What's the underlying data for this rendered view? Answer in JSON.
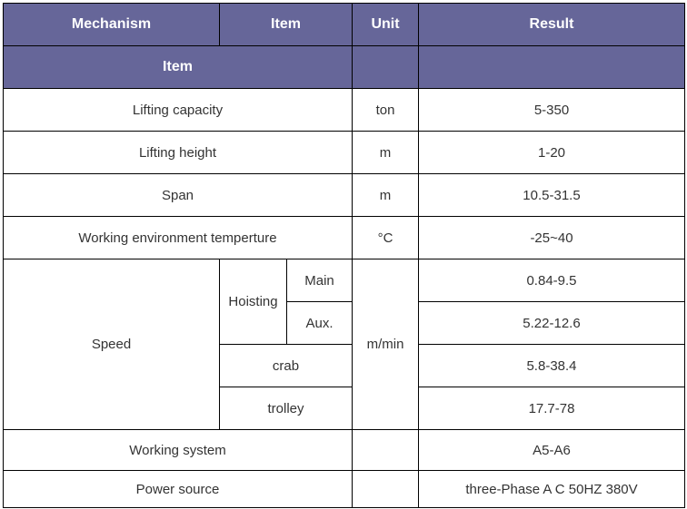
{
  "header": {
    "mechanism": "Mechanism",
    "item": "Item",
    "unit": "Unit",
    "result": "Result",
    "item2": "Item"
  },
  "header_color": "#666699",
  "rows": {
    "lifting_capacity": {
      "item": "Lifting capacity",
      "unit": "ton",
      "result": "5-350"
    },
    "lifting_height": {
      "item": "Lifting height",
      "unit": "m",
      "result": "1-20"
    },
    "span": {
      "item": "Span",
      "unit": "m",
      "result": "10.5-31.5"
    },
    "temperature": {
      "item": "Working environment temperture",
      "unit": "°C",
      "result": "-25~40"
    },
    "speed": {
      "item": "Speed",
      "unit": "m/min",
      "hoisting": "Hoisting",
      "main": "Main",
      "main_result": "0.84-9.5",
      "aux": "Aux.",
      "aux_result": "5.22-12.6",
      "crab": "crab",
      "crab_result": "5.8-38.4",
      "trolley": "trolley",
      "trolley_result": "17.7-78"
    },
    "working_system": {
      "item": "Working system",
      "unit": "",
      "result": "A5-A6"
    },
    "power_source": {
      "item": "Power source",
      "unit": "",
      "result": "three-Phase A C 50HZ 380V"
    }
  }
}
